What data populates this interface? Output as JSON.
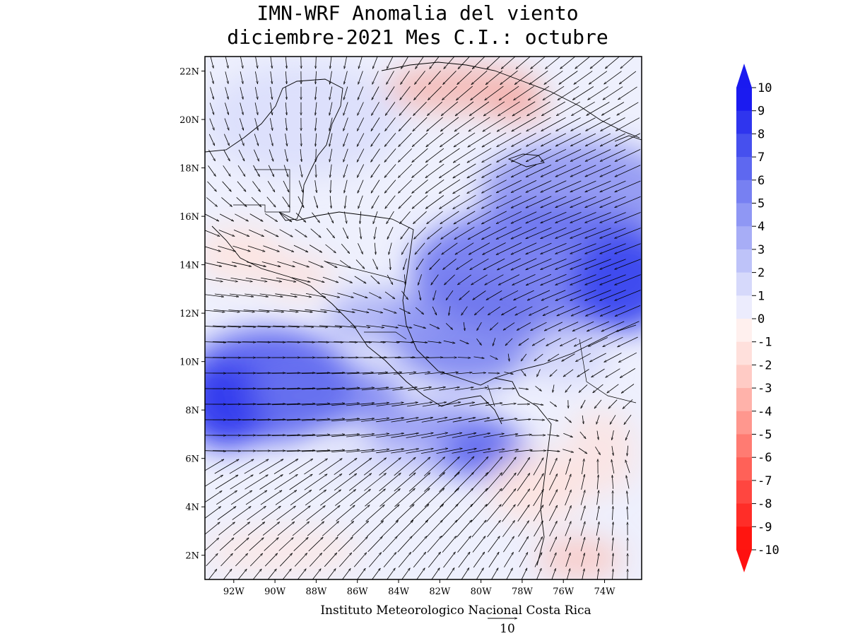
{
  "title": {
    "line1": "IMN-WRF Anomalia del viento",
    "line2": "diciembre-2021 Mes C.I.: octubre"
  },
  "map": {
    "lon_range": [
      -93.4,
      -72.2
    ],
    "lat_range": [
      1.0,
      22.6
    ],
    "lat_ticks": [
      "22N",
      "20N",
      "18N",
      "16N",
      "14N",
      "12N",
      "10N",
      "8N",
      "6N",
      "4N",
      "2N"
    ],
    "lon_ticks": [
      "92W",
      "90W",
      "88W",
      "86W",
      "84W",
      "82W",
      "80W",
      "78W",
      "76W",
      "74W"
    ],
    "vector_reference": {
      "value": "10"
    },
    "credit": "Instituto Meteorologico Nacional Costa Rica"
  },
  "colorbar": {
    "labels": [
      "10",
      "9",
      "8",
      "7",
      "6",
      "5",
      "4",
      "3",
      "2",
      "1",
      "0",
      "-1",
      "-2",
      "-3",
      "-4",
      "-5",
      "-6",
      "-7",
      "-8",
      "-9",
      "-10"
    ],
    "colors": [
      "#1b1bf0",
      "#2f35ee",
      "#4650ee",
      "#5e68f0",
      "#7780f2",
      "#8f97f4",
      "#a7adf6",
      "#bec3f9",
      "#d6d9fb",
      "#ececfd",
      "#fff0ee",
      "#ffe0dc",
      "#ffcbc5",
      "#ffb2aa",
      "#ff978e",
      "#ff7b72",
      "#ff6158",
      "#ff4640",
      "#ff2d28",
      "#ff1510"
    ],
    "max_color": "#1a1af0",
    "min_color": "#ff1010"
  }
}
